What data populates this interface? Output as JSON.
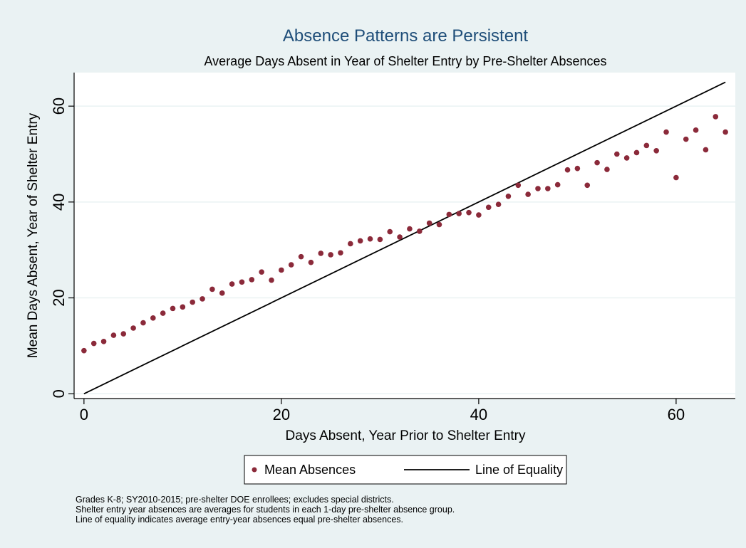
{
  "chart_data": {
    "type": "scatter",
    "title": "Absence Patterns are Persistent",
    "subtitle": "Average Days Absent in Year of Shelter Entry by Pre-Shelter Absences",
    "xlabel": "Days Absent, Year Prior to Shelter Entry",
    "ylabel": "Mean Days Absent, Year of Shelter Entry",
    "xlim": [
      -1,
      66
    ],
    "ylim": [
      -1,
      67
    ],
    "xticks": [
      0,
      20,
      40,
      60
    ],
    "yticks": [
      0,
      20,
      40,
      60
    ],
    "grid": "horizontal",
    "legend_position": "bottom",
    "series": [
      {
        "name": "Mean Absences",
        "kind": "scatter",
        "color": "#8b2a3a",
        "x": [
          0,
          1,
          2,
          3,
          4,
          5,
          6,
          7,
          8,
          9,
          10,
          11,
          12,
          13,
          14,
          15,
          16,
          17,
          18,
          19,
          20,
          21,
          22,
          23,
          24,
          25,
          26,
          27,
          28,
          29,
          30,
          31,
          32,
          33,
          34,
          35,
          36,
          37,
          38,
          39,
          40,
          41,
          42,
          43,
          44,
          45,
          46,
          47,
          48,
          49,
          50,
          51,
          52,
          53,
          54,
          55,
          56,
          57,
          58,
          59,
          60,
          61,
          62,
          63,
          64,
          65
        ],
        "y": [
          9.0,
          10.5,
          10.9,
          12.2,
          12.5,
          13.7,
          14.8,
          15.8,
          16.8,
          17.8,
          18.1,
          19.1,
          19.8,
          21.8,
          21.0,
          22.9,
          23.3,
          23.8,
          25.4,
          23.7,
          25.8,
          26.9,
          28.6,
          27.4,
          29.3,
          29.0,
          29.4,
          31.3,
          31.9,
          32.3,
          32.2,
          33.8,
          32.7,
          34.4,
          33.9,
          35.6,
          35.3,
          37.4,
          37.6,
          37.8,
          37.3,
          38.9,
          39.5,
          41.2,
          43.5,
          41.6,
          42.8,
          42.8,
          43.6,
          46.7,
          47.0,
          43.5,
          48.2,
          46.8,
          50.0,
          49.2,
          50.3,
          51.8,
          50.7,
          54.6,
          45.1,
          53.1,
          55.0,
          50.9,
          57.8,
          54.6
        ]
      },
      {
        "name": "Line of Equality",
        "kind": "line",
        "color": "#000000",
        "x": [
          0,
          65
        ],
        "y": [
          0,
          65
        ]
      }
    ],
    "notes": [
      "Grades K-8; SY2010-2015; pre-shelter DOE enrollees; excludes special districts.",
      "Shelter entry year absences are averages for students in each 1-day pre-shelter absence group.",
      "Line of equality indicates average entry-year absences equal pre-shelter absences."
    ]
  }
}
